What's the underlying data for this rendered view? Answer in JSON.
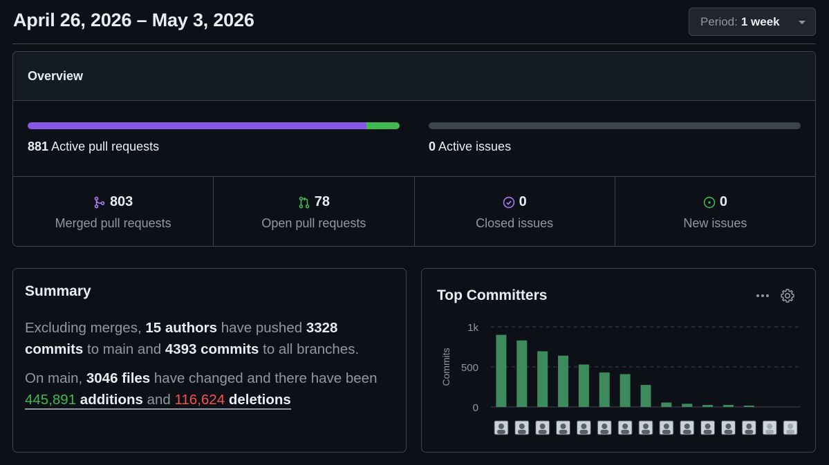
{
  "header": {
    "date_range": "April 26, 2026 – May 3, 2026",
    "period_label": "Period:",
    "period_value": "1 week"
  },
  "overview": {
    "title": "Overview",
    "active_prs_count": "881",
    "active_prs_label": "Active pull requests",
    "active_issues_count": "0",
    "active_issues_label": "Active issues",
    "pr_bar_merged_fraction": 0.9114,
    "pr_bar_open_fraction": 0.0886,
    "stats": [
      {
        "value": "803",
        "label": "Merged pull requests",
        "icon": "git-merge-icon"
      },
      {
        "value": "78",
        "label": "Open pull requests",
        "icon": "git-pull-request-icon"
      },
      {
        "value": "0",
        "label": "Closed issues",
        "icon": "issue-closed-icon"
      },
      {
        "value": "0",
        "label": "New issues",
        "icon": "issue-opened-icon"
      }
    ],
    "colors": {
      "merged": "#8957e5",
      "open": "#3fb950",
      "closed": "#ab7df8",
      "new": "#3fb950"
    }
  },
  "summary": {
    "title": "Summary",
    "p1_a": "Excluding merges, ",
    "authors": "15 authors",
    "p1_b": " have pushed ",
    "commits_main": "3328 commits",
    "p1_c": " to main and ",
    "commits_all": "4393 commits",
    "p1_d": " to all branches.",
    "p2_a": "On main, ",
    "files": "3046 files",
    "p2_b": " have changed and there have been ",
    "additions_num": "445,891",
    "additions_word": " additions",
    "p2_c": " and ",
    "deletions_num": "116,624",
    "deletions_word": " deletions"
  },
  "committers": {
    "title": "Top Committers",
    "menu_icon": "kebab-horizontal-icon",
    "settings_icon": "gear-icon"
  },
  "chart_data": {
    "type": "bar",
    "title": "Top Committers",
    "ylabel": "Commits",
    "xlabel": "",
    "ylim": [
      0,
      1000
    ],
    "yticks": [
      0,
      500,
      1000
    ],
    "ytick_labels": [
      "0",
      "500",
      "1k"
    ],
    "grid": true,
    "bar_color": "#3d8b5c",
    "values": [
      900,
      830,
      695,
      640,
      530,
      430,
      410,
      275,
      55,
      40,
      25,
      25,
      15,
      0,
      0
    ]
  }
}
